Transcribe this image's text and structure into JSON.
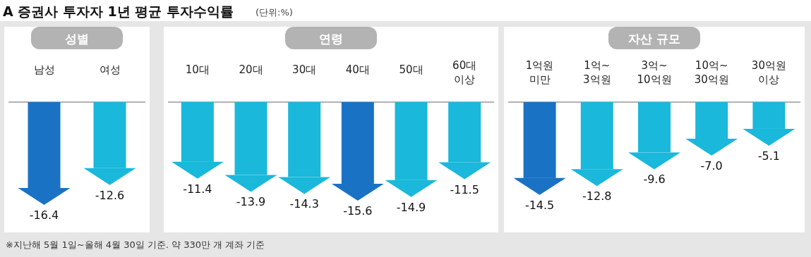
{
  "chart_data": [
    {
      "type": "bar",
      "title": "성별",
      "categories": [
        "남성",
        "여성"
      ],
      "values": [
        -16.4,
        -12.6
      ],
      "colors": [
        "#1a72c4",
        "#1ab8da"
      ],
      "data_labels": true,
      "annotations": [
        "A 증권사 투자자 1년 평균 투자수익률",
        "(단위:%)",
        "※지난해 5월 1일~올해 4월 30일 기준. 약 330만 개 계좌 기준"
      ]
    },
    {
      "type": "bar",
      "title": "연령",
      "categories": [
        "10대",
        "20대",
        "30대",
        "40대",
        "50대",
        "60대 이상"
      ],
      "values": [
        -11.4,
        -13.9,
        -14.3,
        -15.6,
        -14.9,
        -11.5
      ],
      "colors": [
        "#1ab8da",
        "#1ab8da",
        "#1ab8da",
        "#1a72c4",
        "#1ab8da",
        "#1ab8da"
      ],
      "data_labels": true
    },
    {
      "type": "bar",
      "title": "자산 규모",
      "categories": [
        "1억원 미만",
        "1억~ 3억원",
        "3억~ 10억원",
        "10억~ 30억원",
        "30억원 이상"
      ],
      "values": [
        -14.5,
        -12.8,
        -9.6,
        -7.0,
        -5.1
      ],
      "colors": [
        "#1a72c4",
        "#1ab8da",
        "#1ab8da",
        "#1ab8da",
        "#1ab8da"
      ],
      "value_labels": [
        "-14.5",
        "-12.8",
        "-9.6",
        "-7.0",
        "-5.1"
      ]
    }
  ]
}
